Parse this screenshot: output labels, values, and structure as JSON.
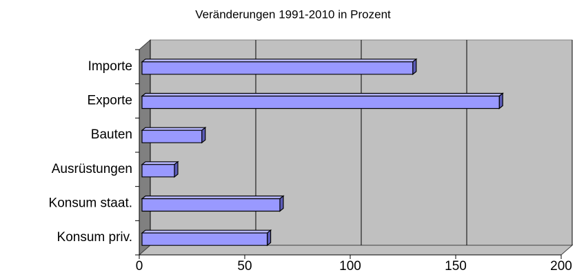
{
  "chart_data": {
    "type": "bar3d",
    "orientation": "horizontal",
    "title": "Veränderungen 1991-2010 in Prozent",
    "categories": [
      "Konsum priv.",
      "Konsum staat.",
      "Ausrüstungen",
      "Bauten",
      "Exporte",
      "Importe"
    ],
    "values": [
      60,
      66,
      16,
      29,
      170,
      129
    ],
    "color": "#9999ff",
    "xlim": [
      0,
      200
    ],
    "xticks": [
      0,
      50,
      100,
      150,
      200
    ],
    "grid": true
  }
}
